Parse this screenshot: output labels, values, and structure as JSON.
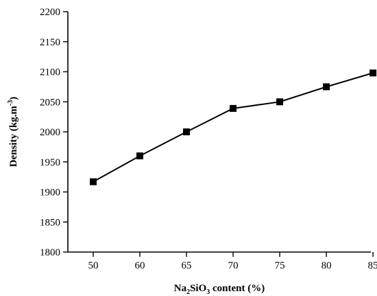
{
  "chart_data": {
    "type": "line",
    "categories": [
      "50",
      "60",
      "65",
      "70",
      "75",
      "80",
      "85"
    ],
    "series": [
      {
        "values": [
          1917,
          1960,
          2000,
          2039,
          2050,
          2075,
          2098
        ]
      }
    ],
    "xlabel": {
      "parts": [
        {
          "text": "Na",
          "sub": false
        },
        {
          "text": "2",
          "sub": true
        },
        {
          "text": "SiO",
          "sub": false
        },
        {
          "text": "3",
          "sub": true
        },
        {
          "text": " content (%)",
          "sub": false
        }
      ]
    },
    "ylabel": {
      "parts": [
        {
          "text": "Density (kg.m",
          "sup": false
        },
        {
          "text": "-3",
          "sup": true
        },
        {
          "text": ")",
          "sup": false
        }
      ]
    },
    "ylim": [
      1800,
      2200
    ],
    "yticks": [
      1800,
      1850,
      1900,
      1950,
      2000,
      2050,
      2100,
      2150,
      2200
    ],
    "grid": false,
    "colors": {
      "line": "#000000",
      "marker": "#000000"
    }
  }
}
